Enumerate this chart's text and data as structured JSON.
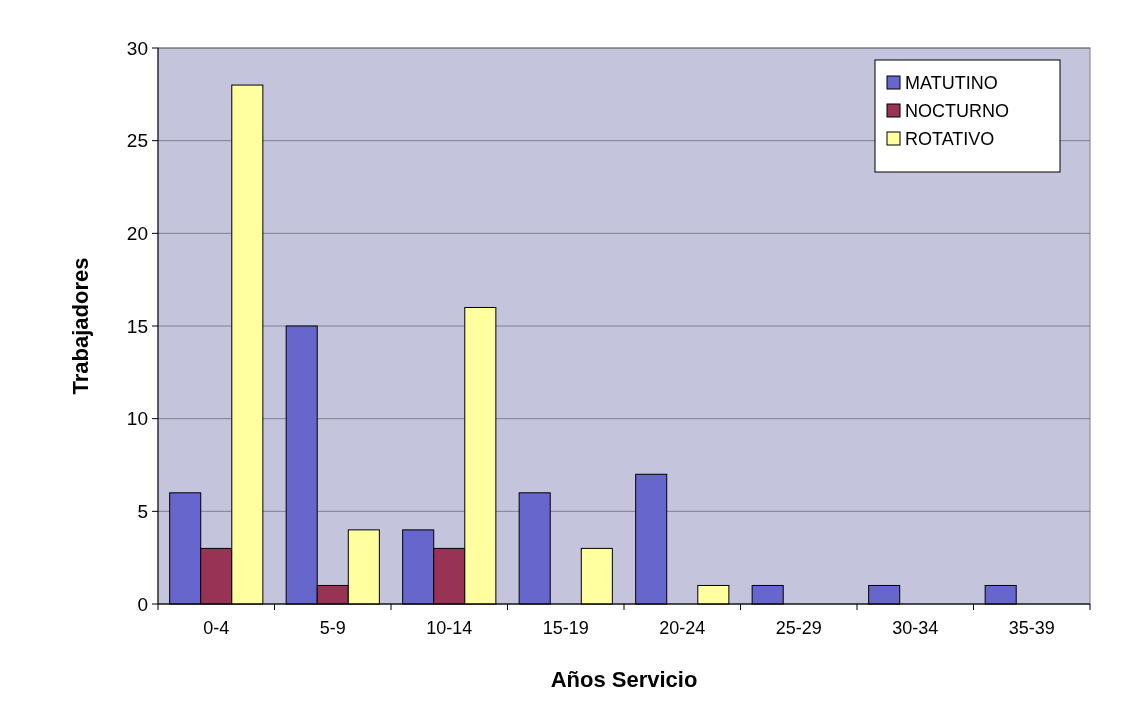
{
  "chart_data": {
    "type": "bar",
    "xlabel": "Años Servicio",
    "ylabel": "Trabajadores",
    "categories": [
      "0-4",
      "5-9",
      "10-14",
      "15-19",
      "20-24",
      "25-29",
      "30-34",
      "35-39"
    ],
    "series": [
      {
        "name": "MATUTINO",
        "color": "#6666cc",
        "values": [
          6,
          15,
          4,
          6,
          7,
          1,
          1,
          1
        ]
      },
      {
        "name": "NOCTURNO",
        "color": "#993355",
        "values": [
          3,
          1,
          3,
          0,
          0,
          0,
          0,
          0
        ]
      },
      {
        "name": "ROTATIVO",
        "color": "#ffffa0",
        "values": [
          28,
          4,
          16,
          3,
          1,
          0,
          0,
          0
        ]
      }
    ],
    "ylim": [
      0,
      30
    ],
    "yticks": [
      0,
      5,
      10,
      15,
      20,
      25,
      30
    ],
    "grid": "y",
    "legend": "top right"
  }
}
